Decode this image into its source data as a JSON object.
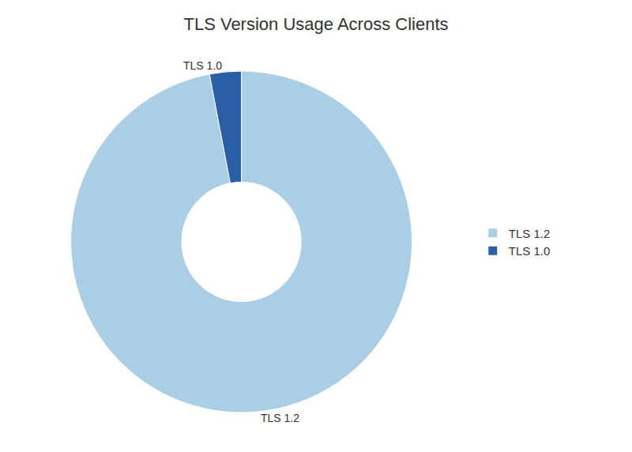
{
  "chart_data": {
    "type": "pie",
    "title": "TLS Version Usage Across Clients",
    "categories": [
      "TLS 1.2",
      "TLS 1.0"
    ],
    "values": [
      97,
      3
    ],
    "colors": [
      "#aacfe4",
      "#2b5fa5"
    ],
    "legend": "right"
  }
}
